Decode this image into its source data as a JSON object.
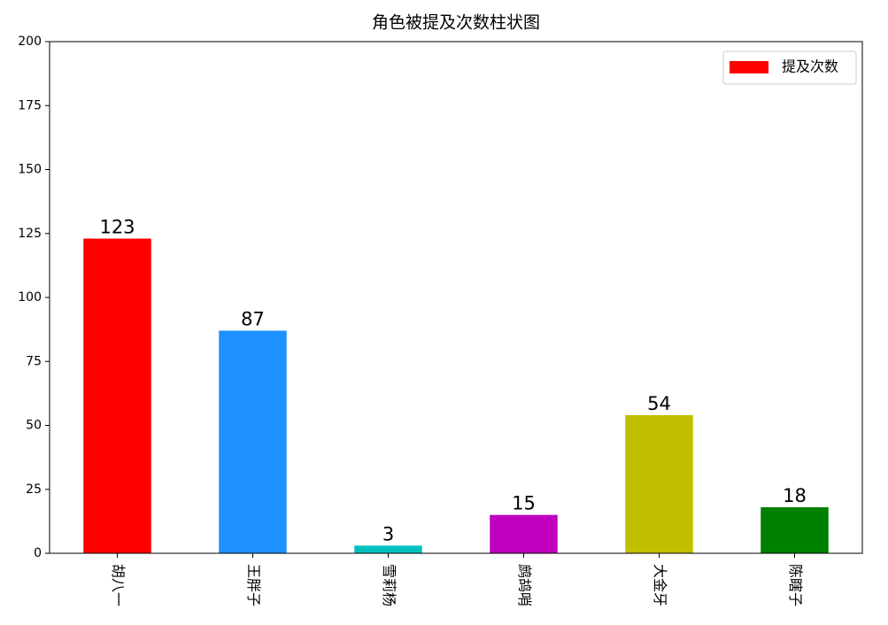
{
  "chart_data": {
    "type": "bar",
    "title": "角色被提及次数柱状图",
    "categories": [
      "胡八一",
      "王胖子",
      "雪莉杨",
      "鹧鸪哨",
      "大金牙",
      "陈瞎子"
    ],
    "series": [
      {
        "name": "提及次数",
        "color": "#ff0000",
        "values": [
          123,
          87,
          3,
          15,
          54,
          18
        ]
      }
    ],
    "colors": [
      "#ff0000",
      "#1e90ff",
      "#00bfbf",
      "#bf00bf",
      "#bfbf00",
      "#008000"
    ],
    "ylim": [
      0,
      200
    ],
    "yticks": [
      0,
      25,
      50,
      75,
      100,
      125,
      150,
      175,
      200
    ],
    "grid": false,
    "legend": "upper right"
  }
}
